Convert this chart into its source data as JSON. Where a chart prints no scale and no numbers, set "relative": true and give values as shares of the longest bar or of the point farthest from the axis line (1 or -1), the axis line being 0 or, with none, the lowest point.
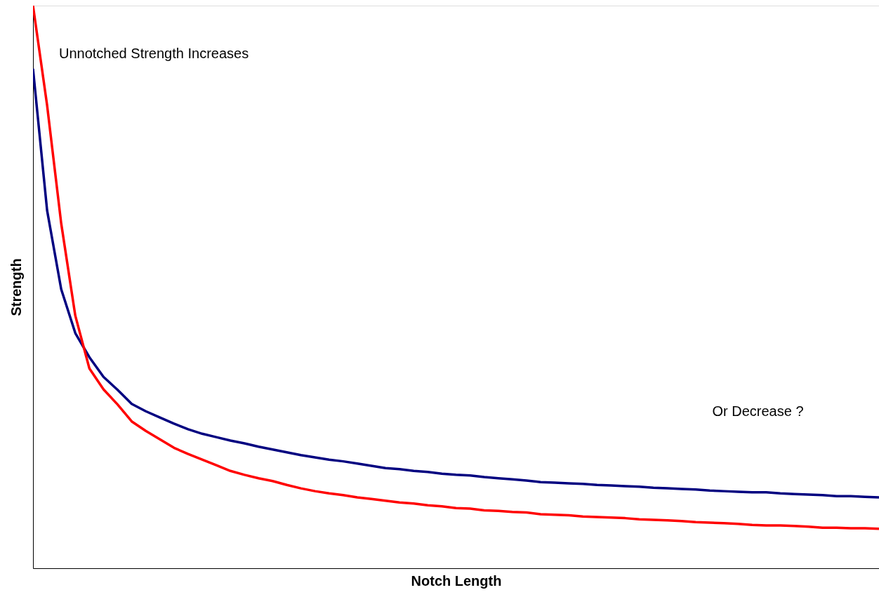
{
  "chart_data": {
    "type": "line",
    "relative": true,
    "xlabel": "Notch Length",
    "ylabel": "Strength",
    "annotations": [
      "Unnotched Strength Increases",
      "Or Decrease ?"
    ],
    "grid": false,
    "marker": "none",
    "line_style": "solid",
    "categories": [
      null,
      null,
      null,
      null,
      null,
      null,
      null,
      null,
      null,
      null,
      null,
      null,
      null,
      null,
      null,
      null,
      null,
      null,
      null,
      null,
      null,
      null,
      null,
      null,
      null,
      null,
      null,
      null,
      null,
      null,
      null,
      null,
      null,
      null,
      null,
      null,
      null,
      null,
      null,
      null,
      null,
      null,
      null,
      null,
      null,
      null,
      null,
      null,
      null,
      null,
      null,
      null,
      null,
      null,
      null,
      null,
      null,
      null,
      null,
      null,
      null
    ],
    "series": [
      {
        "color": "#000080",
        "values": [
          0.888,
          0.636,
          0.496,
          0.418,
          0.375,
          0.34,
          0.317,
          0.292,
          0.279,
          0.268,
          0.257,
          0.247,
          0.239,
          0.233,
          0.227,
          0.222,
          0.216,
          0.211,
          0.206,
          0.201,
          0.197,
          0.193,
          0.19,
          0.186,
          0.182,
          0.178,
          0.176,
          0.173,
          0.171,
          0.168,
          0.166,
          0.165,
          0.162,
          0.16,
          0.158,
          0.156,
          0.153,
          0.152,
          0.151,
          0.15,
          0.148,
          0.147,
          0.146,
          0.145,
          0.143,
          0.142,
          0.141,
          0.14,
          0.138,
          0.137,
          0.136,
          0.135,
          0.135,
          0.133,
          0.132,
          0.131,
          0.13,
          0.128,
          0.128,
          0.127,
          0.126
        ]
      },
      {
        "color": "#ff0000",
        "values": [
          1.0,
          0.823,
          0.613,
          0.449,
          0.355,
          0.318,
          0.291,
          0.261,
          0.244,
          0.229,
          0.214,
          0.203,
          0.193,
          0.183,
          0.173,
          0.166,
          0.16,
          0.155,
          0.148,
          0.142,
          0.137,
          0.133,
          0.13,
          0.126,
          0.123,
          0.12,
          0.117,
          0.115,
          0.112,
          0.11,
          0.107,
          0.106,
          0.103,
          0.102,
          0.1,
          0.099,
          0.096,
          0.095,
          0.094,
          0.092,
          0.091,
          0.09,
          0.089,
          0.087,
          0.086,
          0.085,
          0.084,
          0.082,
          0.081,
          0.08,
          0.079,
          0.077,
          0.076,
          0.076,
          0.075,
          0.074,
          0.072,
          0.072,
          0.071,
          0.071,
          0.07
        ]
      }
    ]
  }
}
